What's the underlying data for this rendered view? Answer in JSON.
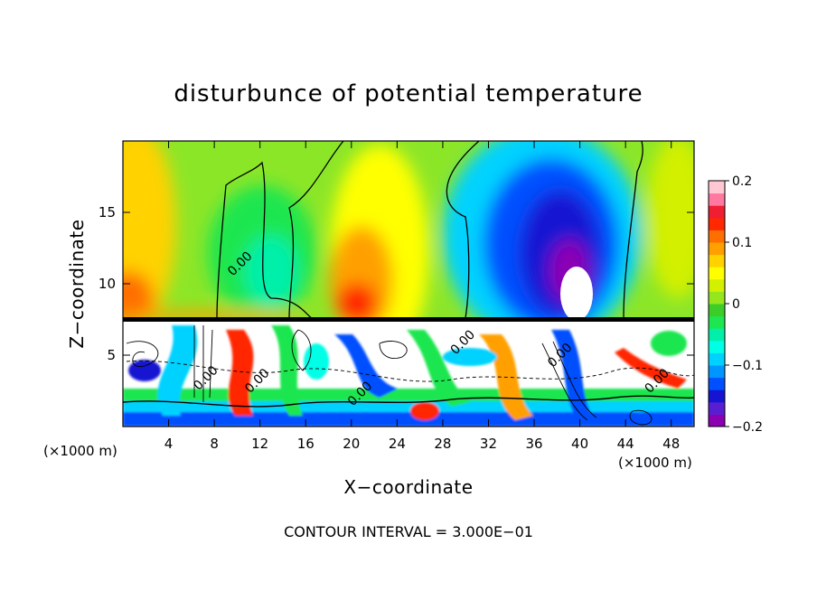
{
  "chart_data": {
    "type": "heatmap",
    "title": "disturbunce of potential temperature",
    "xlabel": "X−coordinate",
    "ylabel": "Z−coordinate",
    "x_unit_left": "(×1000 m)",
    "x_unit_right": "(×1000 m)",
    "footer": "CONTOUR INTERVAL = 3.000E−01",
    "xlim": [
      0,
      50
    ],
    "ylim": [
      0,
      20
    ],
    "x_ticks": [
      "4",
      "8",
      "12",
      "16",
      "20",
      "24",
      "28",
      "32",
      "36",
      "40",
      "44",
      "48"
    ],
    "x_tick_values": [
      4,
      8,
      12,
      16,
      20,
      24,
      28,
      32,
      36,
      40,
      44,
      48
    ],
    "y_ticks": [
      "5",
      "10",
      "15"
    ],
    "y_tick_values": [
      5,
      10,
      15
    ],
    "contour_labels": [
      {
        "text": "0.00",
        "x": 10.5,
        "z": 11.2
      },
      {
        "text": "0.00",
        "x": 7.5,
        "z": 3.2
      },
      {
        "text": "0.00",
        "x": 12.0,
        "z": 3.0
      },
      {
        "text": "0.00",
        "x": 21.0,
        "z": 2.1
      },
      {
        "text": "0.00",
        "x": 30.0,
        "z": 5.7
      },
      {
        "text": "0.00",
        "x": 38.5,
        "z": 4.8
      },
      {
        "text": "0.00",
        "x": 47.0,
        "z": 3.0
      }
    ],
    "colorbar": {
      "min": -0.2,
      "max": 0.2,
      "tick_labels": [
        "0.2",
        "0.1",
        "0",
        "−0.1",
        "−0.2"
      ],
      "tick_values": [
        0.2,
        0.1,
        0,
        -0.1,
        -0.2
      ],
      "colors": [
        "#8c00b4",
        "#5a1ed2",
        "#1414d2",
        "#0050ff",
        "#0096ff",
        "#00d2ff",
        "#00ffe6",
        "#00f0aa",
        "#1ee650",
        "#3ccd28",
        "#96e61e",
        "#d2f000",
        "#ffff00",
        "#ffd200",
        "#ffa000",
        "#ff6e00",
        "#ff2800",
        "#f01e32",
        "#ff78a0",
        "#ffc8d2"
      ]
    },
    "upper_band": {
      "z_range": [
        7.5,
        20
      ],
      "description_values": [
        {
          "x_range": [
            0,
            2
          ],
          "value": 0.12
        },
        {
          "x_range": [
            5,
            14
          ],
          "value": -0.01
        },
        {
          "x_range": [
            17,
            24
          ],
          "value": 0.1
        },
        {
          "x_range": [
            34,
            42
          ],
          "value": -0.17
        },
        {
          "x_range": [
            44,
            50
          ],
          "value": 0.05
        }
      ]
    }
  }
}
